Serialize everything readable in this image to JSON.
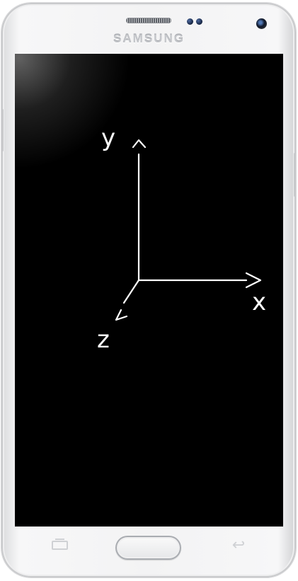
{
  "device": {
    "brand_text": "SAMSUNG",
    "body_color": "#f3f3f4",
    "screen_color": "#000000"
  },
  "diagram": {
    "axes": [
      {
        "name": "y",
        "label": "y",
        "direction": "up",
        "arrow_glyph": "^"
      },
      {
        "name": "x",
        "label": "x",
        "direction": "right",
        "arrow_glyph": ">"
      },
      {
        "name": "z",
        "label": "z",
        "direction": "down-left",
        "arrow_glyph": "v"
      }
    ],
    "line_color": "#ffffff"
  },
  "nav": {
    "recent_icon": "recent-apps-icon",
    "home_icon": "home-button",
    "back_icon": "back-arrow-icon",
    "back_glyph": "↩"
  }
}
